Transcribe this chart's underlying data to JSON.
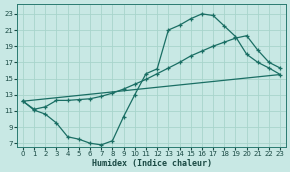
{
  "xlabel": "Humidex (Indice chaleur)",
  "bg_color": "#c8e8e4",
  "grid_color": "#a8d4cc",
  "line_color": "#1a6e64",
  "xlim": [
    -0.5,
    23.5
  ],
  "ylim": [
    6.5,
    24.2
  ],
  "xticks": [
    0,
    1,
    2,
    3,
    4,
    5,
    6,
    7,
    8,
    9,
    10,
    11,
    12,
    13,
    14,
    15,
    16,
    17,
    18,
    19,
    20,
    21,
    22,
    23
  ],
  "yticks": [
    7,
    9,
    11,
    13,
    15,
    17,
    19,
    21,
    23
  ],
  "curve1_x": [
    0,
    1,
    2,
    3,
    4,
    5,
    6,
    7,
    8,
    9,
    10,
    11,
    12,
    13,
    14,
    15,
    16,
    17,
    18,
    19,
    20,
    21,
    22,
    23
  ],
  "curve1_y": [
    12.2,
    11.1,
    10.6,
    9.5,
    7.8,
    7.5,
    7.0,
    6.8,
    7.3,
    10.3,
    13.0,
    15.6,
    16.2,
    21.0,
    21.6,
    22.4,
    23.0,
    22.8,
    21.5,
    20.2,
    18.0,
    17.0,
    16.3,
    15.5
  ],
  "curve2_x": [
    0,
    1,
    2,
    3,
    4,
    5,
    6,
    7,
    8,
    9,
    10,
    11,
    12,
    13,
    14,
    15,
    16,
    17,
    18,
    19,
    20,
    21,
    22,
    23
  ],
  "curve2_y": [
    12.2,
    11.2,
    11.5,
    12.3,
    12.3,
    12.4,
    12.5,
    12.8,
    13.2,
    13.7,
    14.3,
    14.9,
    15.6,
    16.3,
    17.0,
    17.8,
    18.4,
    19.0,
    19.5,
    20.0,
    20.3,
    18.5,
    17.0,
    16.3
  ],
  "curve3_x": [
    0,
    23
  ],
  "curve3_y": [
    12.2,
    15.5
  ]
}
